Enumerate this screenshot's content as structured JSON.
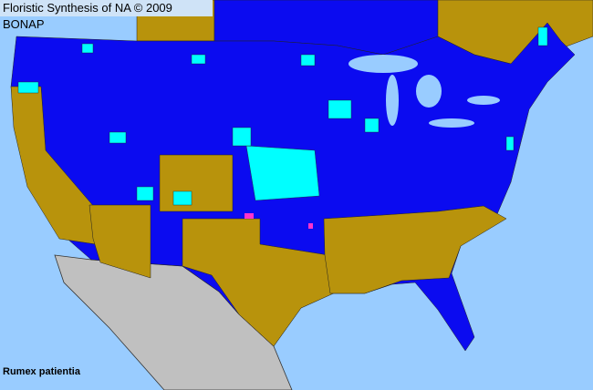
{
  "header": {
    "title": "Floristic Synthesis of NA © 2009 BONAP"
  },
  "map": {
    "species": "Rumex patientia",
    "colors": {
      "water": "#99ccff",
      "present_blue": "#0b0bf0",
      "gold": "#b8930c",
      "cyan": "#00ffff",
      "magenta": "#ff33cc",
      "outside_gray": "#c0c0c0",
      "county_lines": "#1a1a1a"
    }
  }
}
